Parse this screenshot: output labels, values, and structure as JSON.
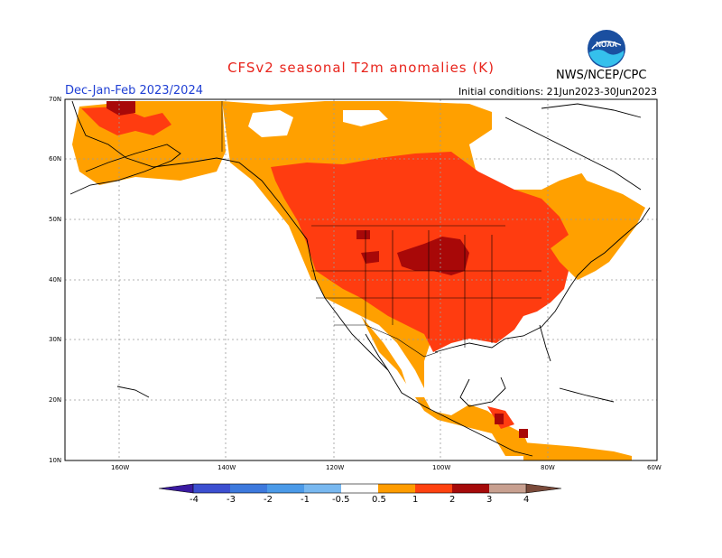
{
  "header": {
    "title": "CFSv2 seasonal T2m anomalies (K)",
    "season": "Dec-Jan-Feb 2023/2024",
    "initial_conditions": "Initial conditions: 21Jun2023-30Jun2023",
    "agency": "NWS/NCEP/CPC",
    "logo_text": "NOAA"
  },
  "axes": {
    "lat_labels": [
      "70N",
      "60N",
      "50N",
      "40N",
      "30N",
      "20N",
      "10N"
    ],
    "lon_labels": [
      "160W",
      "140W",
      "120W",
      "100W",
      "80W",
      "60W"
    ]
  },
  "colorbar": {
    "labels": [
      "-4",
      "-3",
      "-2",
      "-1",
      "-0.5",
      "0.5",
      "1",
      "2",
      "3",
      "4"
    ],
    "colors": [
      "#3a1aa0",
      "#3c4fd0",
      "#3d79dd",
      "#4b9ae8",
      "#78b8f0",
      "#ffffff",
      "#ff9c00",
      "#ff4210",
      "#e02a12",
      "#a50a0a",
      "#c8a090",
      "#7a4a3a"
    ]
  },
  "map_colors": {
    "anom_0_5_1": "#ffa000",
    "anom_1_2": "#ff3c10",
    "anom_2_3": "#a80808",
    "anom_3_4": "#c8a090",
    "below": "#5aa0e8"
  }
}
